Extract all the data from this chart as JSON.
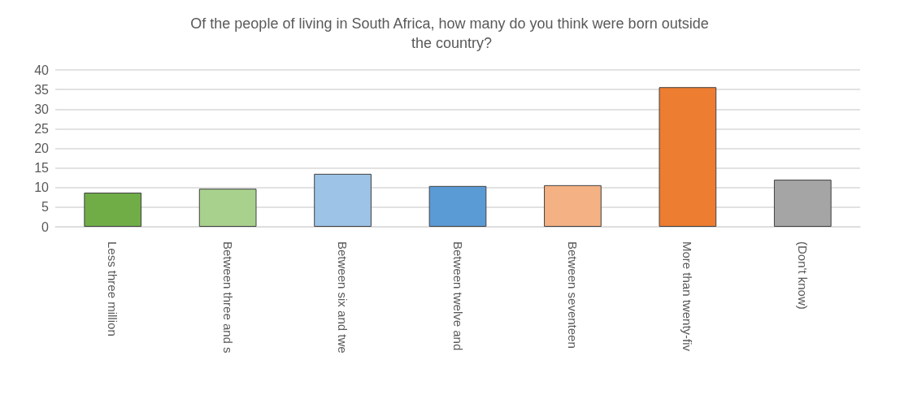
{
  "chart_data": {
    "type": "bar",
    "title": "Of the people of living in South Africa, how many do you think were born outside the country?",
    "categories": [
      "Less three million",
      "Between three and s",
      "Between six and twe",
      "Between twelve and",
      "Between seventeen",
      "More than twenty-fiv",
      "(Don't know)"
    ],
    "values": [
      8.7,
      9.7,
      13.5,
      10.4,
      10.6,
      35.6,
      12.0
    ],
    "colors": [
      "#70ad47",
      "#a9d18e",
      "#9dc3e6",
      "#5b9bd5",
      "#f4b183",
      "#ed7d31",
      "#a5a5a5"
    ],
    "ylim": [
      0,
      40
    ],
    "yticks": [
      0,
      5,
      10,
      15,
      20,
      25,
      30,
      35,
      40
    ],
    "grid": "y"
  }
}
